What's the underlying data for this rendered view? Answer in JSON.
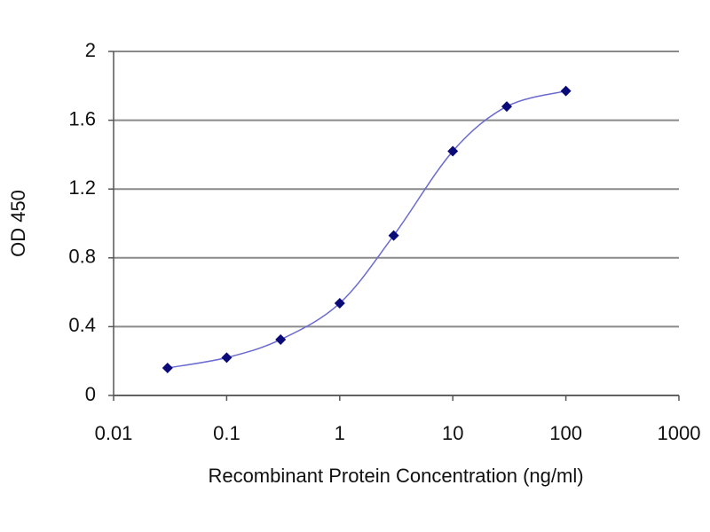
{
  "chart_data": {
    "type": "line",
    "xlabel": "Recombinant Protein Concentration (ng/ml)",
    "ylabel": "OD 450",
    "x": [
      0.03,
      0.1,
      0.3,
      1,
      3,
      10,
      30,
      100
    ],
    "values": [
      0.16,
      0.22,
      0.325,
      0.536,
      0.93,
      1.42,
      1.68,
      1.77
    ],
    "color": "#6a6ad0",
    "marker_color": "#0a0a78",
    "xscale": "log",
    "xlim": [
      0.01,
      1000
    ],
    "xticks": [
      0.01,
      0.1,
      1,
      10,
      100,
      1000
    ],
    "ylim": [
      0,
      2
    ],
    "yticks": [
      0,
      0.4,
      0.8,
      1.2,
      1.6,
      2
    ],
    "grid": true
  }
}
